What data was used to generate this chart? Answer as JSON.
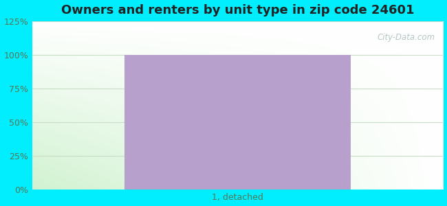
{
  "title": "Owners and renters by unit type in zip code 24601",
  "categories": [
    "1, detached"
  ],
  "values": [
    100
  ],
  "bar_color": "#b8a0cc",
  "bar_width": 0.55,
  "ylim": [
    0,
    125
  ],
  "yticks": [
    0,
    25,
    50,
    75,
    100,
    125
  ],
  "ytick_labels": [
    "0%",
    "25%",
    "50%",
    "75%",
    "100%",
    "125%"
  ],
  "outer_bg_color": "#00eeff",
  "title_fontsize": 13,
  "tick_fontsize": 9,
  "watermark": "City-Data.com",
  "grid_color": "#d8e8d8",
  "tick_color": "#557755"
}
